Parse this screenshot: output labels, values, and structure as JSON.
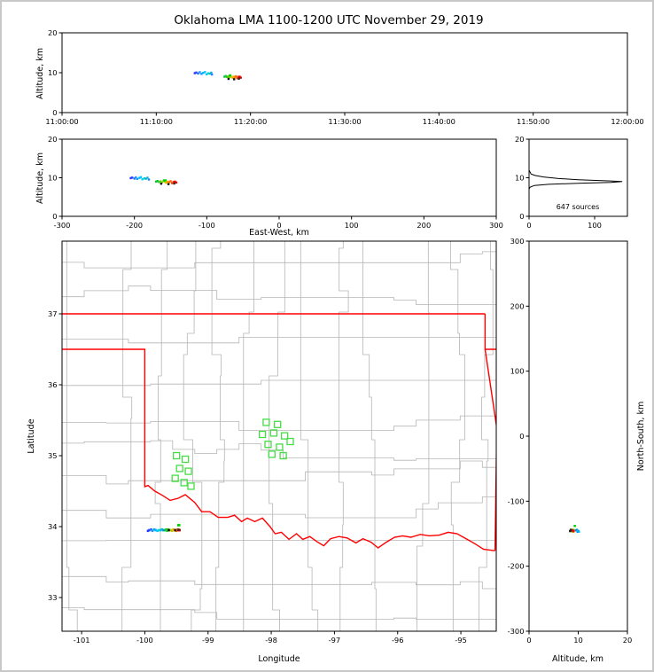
{
  "title": "Oklahoma LMA 1100-1200 UTC November 29, 2019",
  "chart_data": [
    {
      "id": "time_altitude_panel",
      "type": "scatter",
      "ylabel": "Altitude, km",
      "xtick_labels": [
        "11:00:00",
        "11:10:00",
        "11:20:00",
        "11:30:00",
        "11:40:00",
        "11:50:00",
        "12:00:00"
      ],
      "xlim_seconds": [
        0,
        3600
      ],
      "ylim": [
        0,
        20
      ],
      "yticks": [
        0,
        10,
        20
      ]
    },
    {
      "id": "eastwest_altitude_panel",
      "type": "scatter",
      "xlabel": "East-West, km",
      "ylabel": "Altitude, km",
      "xlim": [
        -300,
        300
      ],
      "xticks": [
        -300,
        -200,
        -100,
        0,
        100,
        200,
        300
      ],
      "ylim": [
        0,
        20
      ],
      "yticks": [
        0,
        10,
        20
      ]
    },
    {
      "id": "altitude_histogram_panel",
      "type": "line",
      "label": "647 sources",
      "xlim": [
        0,
        150
      ],
      "xticks": [
        0,
        100
      ],
      "ylim": [
        0,
        20
      ],
      "yticks": [
        0,
        10,
        20
      ],
      "curve_alt_count": [
        [
          20,
          0
        ],
        [
          12,
          0
        ],
        [
          11,
          3
        ],
        [
          10.6,
          9
        ],
        [
          10.2,
          22
        ],
        [
          9.8,
          45
        ],
        [
          9.5,
          75
        ],
        [
          9.2,
          120
        ],
        [
          9,
          142
        ],
        [
          8.8,
          125
        ],
        [
          8.6,
          80
        ],
        [
          8.3,
          30
        ],
        [
          8,
          8
        ],
        [
          7.5,
          1
        ],
        [
          7,
          0
        ],
        [
          0,
          0
        ]
      ]
    },
    {
      "id": "map_panel",
      "type": "scatter",
      "xlabel": "Longitude",
      "ylabel": "Latitude",
      "xlim": [
        -101.31,
        -94.44
      ],
      "xticks": [
        -101,
        -100,
        -99,
        -98,
        -97,
        -96,
        -95
      ],
      "ylim": [
        32.525,
        38.025
      ],
      "yticks": [
        33,
        34,
        35,
        36,
        37
      ]
    },
    {
      "id": "northsouth_altitude_panel",
      "type": "scatter",
      "xlabel": "Altitude, km",
      "ylabel": "North-South, km",
      "xlim": [
        0,
        20
      ],
      "xticks": [
        0,
        10,
        20
      ],
      "ylim": [
        -300,
        300
      ],
      "yticks": [
        -300,
        -200,
        -100,
        0,
        100,
        200,
        300
      ]
    }
  ],
  "sources": {
    "fields": [
      "t_seconds_after_1100",
      "east_west_km",
      "north_south_km",
      "lon",
      "lat",
      "alt_km",
      "color"
    ],
    "points": [
      [
        845,
        -205,
        -147,
        -99.95,
        33.94,
        9.9,
        "#2b2bff"
      ],
      [
        855,
        -203,
        -146,
        -99.93,
        33.95,
        10.05,
        "#2b4bff"
      ],
      [
        866,
        -200,
        -145,
        -99.9,
        33.96,
        9.8,
        "#1f6fff"
      ],
      [
        877,
        -198,
        -147,
        -99.88,
        33.94,
        10.1,
        "#1e90ff"
      ],
      [
        888,
        -196,
        -144,
        -99.85,
        33.96,
        9.7,
        "#00a0ff"
      ],
      [
        899,
        -193,
        -146,
        -99.83,
        33.95,
        9.95,
        "#00b4ff"
      ],
      [
        910,
        -191,
        -147,
        -99.8,
        33.94,
        10.15,
        "#00c8ff"
      ],
      [
        921,
        -189,
        -145,
        -99.78,
        33.95,
        9.6,
        "#00cfee"
      ],
      [
        932,
        -186,
        -146,
        -99.75,
        33.95,
        9.85,
        "#00c8d2"
      ],
      [
        943,
        -184,
        -144,
        -99.73,
        33.96,
        9.75,
        "#00bfc8"
      ],
      [
        950,
        -182,
        -146,
        -99.71,
        33.95,
        10.0,
        "#10b0e0"
      ],
      [
        955,
        -180,
        -145,
        -99.7,
        33.95,
        9.55,
        "#2080ff"
      ],
      [
        1035,
        -170,
        -146,
        -99.68,
        33.95,
        9.0,
        "#00c832"
      ],
      [
        1042,
        -168,
        -145,
        -99.66,
        33.96,
        9.15,
        "#00c832"
      ],
      [
        1050,
        -166,
        -147,
        -99.65,
        33.94,
        8.9,
        "#32cd32"
      ],
      [
        1057,
        -164,
        -144,
        -99.63,
        33.96,
        9.05,
        "#55d000"
      ],
      [
        1064,
        -162,
        -146,
        -99.61,
        33.95,
        8.8,
        "#7fd000"
      ],
      [
        1072,
        -160,
        -145,
        -99.59,
        33.95,
        9.1,
        "#a0d000"
      ],
      [
        1079,
        -158,
        -147,
        -99.57,
        33.94,
        8.95,
        "#c8c800"
      ],
      [
        1086,
        -156,
        -144,
        -99.55,
        33.96,
        8.7,
        "#e0b400"
      ],
      [
        1094,
        -154,
        -146,
        -99.53,
        33.95,
        9.0,
        "#ffa000"
      ],
      [
        1101,
        -152,
        -145,
        -99.51,
        33.95,
        8.85,
        "#ff8200"
      ],
      [
        1108,
        -150,
        -146,
        -99.5,
        33.94,
        9.1,
        "#ff6400"
      ],
      [
        1116,
        -148,
        -144,
        -99.48,
        33.96,
        8.6,
        "#ff4600"
      ],
      [
        1123,
        -146,
        -145,
        -99.47,
        33.95,
        8.9,
        "#ff2800"
      ],
      [
        1131,
        -144,
        -146,
        -99.46,
        33.95,
        9.0,
        "#f00000"
      ],
      [
        1138,
        -142,
        -145,
        -99.45,
        33.95,
        8.75,
        "#d80000"
      ],
      [
        1060,
        -163,
        -145,
        -99.62,
        33.95,
        8.45,
        "#141414"
      ],
      [
        1096,
        -153,
        -146,
        -99.52,
        33.95,
        8.35,
        "#141414"
      ],
      [
        1126,
        -145,
        -144,
        -99.465,
        33.955,
        8.5,
        "#282828"
      ],
      [
        1068,
        -159,
        -138,
        -99.47,
        34.02,
        9.3,
        "#00d000"
      ],
      [
        1071,
        -157,
        -138,
        -99.455,
        34.02,
        9.3,
        "#00d000"
      ]
    ]
  },
  "stations": {
    "marker": "open-square",
    "color": "#44dd44",
    "points": [
      [
        -98.08,
        35.47
      ],
      [
        -97.9,
        35.44
      ],
      [
        -98.14,
        35.3
      ],
      [
        -97.96,
        35.32
      ],
      [
        -97.79,
        35.28
      ],
      [
        -98.05,
        35.16
      ],
      [
        -97.87,
        35.12
      ],
      [
        -97.7,
        35.2
      ],
      [
        -97.99,
        35.02
      ],
      [
        -97.81,
        35.0
      ],
      [
        -99.5,
        35.0
      ],
      [
        -99.36,
        34.95
      ],
      [
        -99.45,
        34.82
      ],
      [
        -99.31,
        34.78
      ],
      [
        -99.52,
        34.68
      ],
      [
        -99.38,
        34.62
      ],
      [
        -99.27,
        34.57
      ]
    ]
  },
  "state_border": {
    "color": "#ff0000",
    "polylines": [
      [
        [
          -101.31,
          37
        ],
        [
          -94.617,
          37
        ]
      ],
      [
        [
          -94.617,
          37
        ],
        [
          -94.617,
          36.5
        ],
        [
          -94.44,
          36.5
        ]
      ],
      [
        [
          -94.617,
          36.5
        ],
        [
          -94.431,
          35.39
        ],
        [
          -94.46,
          33.66
        ]
      ],
      [
        [
          -101.31,
          36.5
        ],
        [
          -100,
          36.5
        ],
        [
          -100,
          34.563
        ],
        [
          -99.95,
          34.58
        ],
        [
          -99.84,
          34.5
        ],
        [
          -99.72,
          34.44
        ],
        [
          -99.6,
          34.37
        ],
        [
          -99.47,
          34.4
        ],
        [
          -99.36,
          34.45
        ],
        [
          -99.21,
          34.34
        ],
        [
          -99.1,
          34.21
        ],
        [
          -98.97,
          34.21
        ],
        [
          -98.84,
          34.13
        ],
        [
          -98.69,
          34.13
        ],
        [
          -98.58,
          34.16
        ],
        [
          -98.47,
          34.07
        ],
        [
          -98.38,
          34.12
        ],
        [
          -98.26,
          34.07
        ],
        [
          -98.14,
          34.12
        ],
        [
          -98.02,
          34.0
        ],
        [
          -97.94,
          33.9
        ],
        [
          -97.84,
          33.92
        ],
        [
          -97.72,
          33.82
        ],
        [
          -97.6,
          33.9
        ],
        [
          -97.5,
          33.82
        ],
        [
          -97.39,
          33.86
        ],
        [
          -97.28,
          33.79
        ],
        [
          -97.17,
          33.73
        ],
        [
          -97.06,
          33.83
        ],
        [
          -96.93,
          33.86
        ],
        [
          -96.8,
          33.84
        ],
        [
          -96.66,
          33.77
        ],
        [
          -96.55,
          33.83
        ],
        [
          -96.42,
          33.78
        ],
        [
          -96.31,
          33.7
        ],
        [
          -96.18,
          33.78
        ],
        [
          -96.05,
          33.85
        ],
        [
          -95.92,
          33.87
        ],
        [
          -95.79,
          33.85
        ],
        [
          -95.64,
          33.89
        ],
        [
          -95.5,
          33.87
        ],
        [
          -95.34,
          33.88
        ],
        [
          -95.2,
          33.92
        ],
        [
          -95.06,
          33.9
        ],
        [
          -94.92,
          33.83
        ],
        [
          -94.78,
          33.76
        ],
        [
          -94.64,
          33.68
        ],
        [
          -94.46,
          33.66
        ]
      ]
    ]
  },
  "counties": {
    "color": "#b5b5b5"
  }
}
